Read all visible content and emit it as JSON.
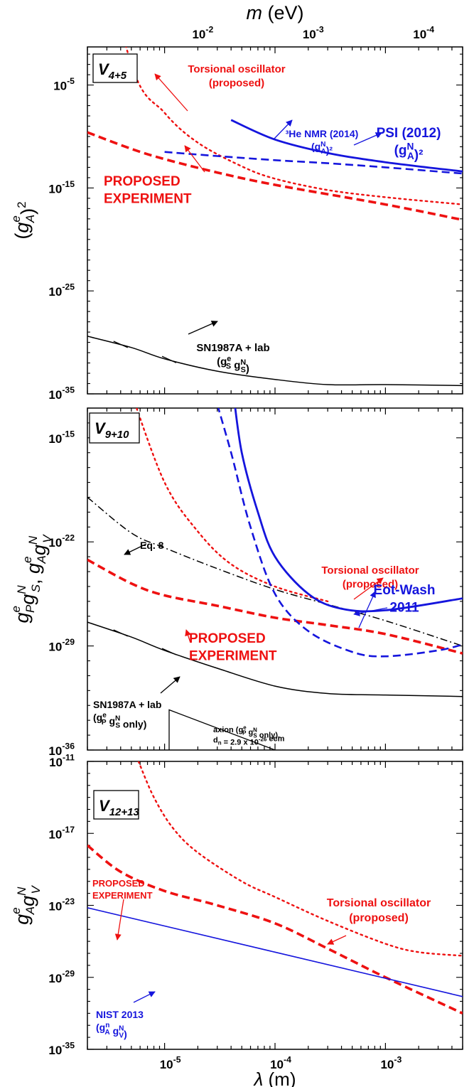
{
  "top_axis": {
    "label_var": "m",
    "label_unit": " (eV)",
    "ticks": [
      {
        "base": "10",
        "exp": "-2",
        "lambda": 1.97e-05
      },
      {
        "base": "10",
        "exp": "-3",
        "lambda": 0.000197
      },
      {
        "base": "10",
        "exp": "-4",
        "lambda": 0.00197
      }
    ]
  },
  "bottom_axis": {
    "label_var": "λ",
    "label_unit": " (m)",
    "ticks": [
      {
        "base": "10",
        "exp": "-5",
        "value": 1e-05
      },
      {
        "base": "10",
        "exp": "-4",
        "value": 0.0001
      },
      {
        "base": "10",
        "exp": "-3",
        "value": 0.001
      }
    ]
  },
  "colors": {
    "red": "#ee1111",
    "blue": "#1515dd",
    "black": "#000000"
  },
  "chart_data": [
    {
      "type": "line",
      "xscale": "log",
      "yscale": "log",
      "xlim": [
        2e-06,
        0.005
      ],
      "ylim_exp": [
        -35,
        -1.3
      ],
      "badge": {
        "main": "V",
        "sub": "4+5"
      },
      "ylabel": {
        "pre": "(g",
        "sub": "A",
        "sup": "e",
        "post": ")",
        "sup2": "2"
      },
      "yticks": [
        {
          "base": "10",
          "exp": "-5",
          "value_exp": -5
        },
        {
          "base": "10",
          "exp": "-15",
          "value_exp": -15
        },
        {
          "base": "10",
          "exp": "-25",
          "value_exp": -25
        },
        {
          "base": "10",
          "exp": "-35",
          "value_exp": -35
        }
      ],
      "series": [
        {
          "id": "torsional",
          "color": "red",
          "style": "dotted",
          "width": 2.4,
          "points": [
            [
              2e-06,
              15
            ],
            [
              5e-06,
              -3
            ],
            [
              1e-05,
              -7.7
            ],
            [
              2e-05,
              -10.6
            ],
            [
              5e-05,
              -12.9
            ],
            [
              0.0001,
              -14.1
            ],
            [
              0.0003,
              -15.2
            ],
            [
              0.001,
              -15.9
            ],
            [
              0.005,
              -16.6
            ]
          ]
        },
        {
          "id": "proposed",
          "color": "red",
          "style": "dashed",
          "width": 3.6,
          "points": [
            [
              2e-06,
              -9.6
            ],
            [
              5e-06,
              -11.2
            ],
            [
              1e-05,
              -12.2
            ],
            [
              3e-05,
              -13.5
            ],
            [
              0.0001,
              -14.7
            ],
            [
              0.001,
              -16.6
            ],
            [
              0.005,
              -18.1
            ]
          ]
        },
        {
          "id": "he3",
          "color": "blue",
          "style": "dashed",
          "width": 2.6,
          "points": [
            [
              1e-05,
              -11.5
            ],
            [
              3e-05,
              -11.9
            ],
            [
              0.0001,
              -12.3
            ],
            [
              0.0003,
              -12.6
            ],
            [
              0.001,
              -13.0
            ],
            [
              0.005,
              -13.6
            ]
          ]
        },
        {
          "id": "psi",
          "color": "blue",
          "style": "solid",
          "width": 2.8,
          "points": [
            [
              4e-05,
              -8.4
            ],
            [
              0.0001,
              -10.3
            ],
            [
              0.0003,
              -11.6
            ],
            [
              0.001,
              -12.5
            ],
            [
              0.005,
              -13.4
            ]
          ]
        },
        {
          "id": "sn",
          "color": "black",
          "style": "solid",
          "width": 1.5,
          "points": [
            [
              2e-06,
              -29.4
            ],
            [
              5e-06,
              -30.5
            ],
            [
              1e-05,
              -31.6
            ],
            [
              3e-05,
              -32.8
            ],
            [
              0.0001,
              -33.6
            ],
            [
              0.0003,
              -34.1
            ],
            [
              0.001,
              -34.1
            ],
            [
              0.005,
              -34.2
            ]
          ]
        }
      ],
      "labels": [
        {
          "id": "torsional-label",
          "color": "red",
          "lines": [
            "Torsional oscillator",
            "(proposed)"
          ],
          "size": 15
        },
        {
          "id": "he3-label",
          "color": "blue",
          "lines": [
            "³He NMR (2014)",
            "(g_A^N)²"
          ],
          "size": 14
        },
        {
          "id": "psi-label",
          "color": "blue",
          "lines": [
            "PSI (2012)",
            "(g_A^N)²"
          ],
          "size": 19
        },
        {
          "id": "proposed-label",
          "color": "red",
          "lines": [
            "PROPOSED",
            "EXPERIMENT"
          ],
          "size": 19
        },
        {
          "id": "sn-label",
          "color": "black",
          "lines": [
            "SN1987A + lab",
            "(g_S^e g_S^N)"
          ],
          "size": 15
        }
      ]
    },
    {
      "type": "line",
      "xscale": "log",
      "yscale": "log",
      "xlim": [
        2e-06,
        0.005
      ],
      "ylim_exp": [
        -36,
        -13
      ],
      "badge": {
        "main": "V",
        "sub": "9+10"
      },
      "ylabel": {
        "parts": [
          [
            "g",
            "P",
            "e"
          ],
          [
            "g",
            "S",
            "N"
          ]
        ],
        "sep": ", ",
        "parts2": [
          [
            "g",
            "A",
            "e"
          ],
          [
            "g",
            "V",
            "N"
          ]
        ]
      },
      "yticks": [
        {
          "base": "10",
          "exp": "-15",
          "value_exp": -15
        },
        {
          "base": "10",
          "exp": "-22",
          "value_exp": -22
        },
        {
          "base": "10",
          "exp": "-29",
          "value_exp": -29
        },
        {
          "base": "10",
          "exp": "-36",
          "value_exp": -36
        }
      ],
      "series": [
        {
          "id": "torsional",
          "color": "red",
          "style": "dotted",
          "width": 2.4,
          "points": [
            [
              5e-06,
              -12
            ],
            [
              1e-05,
              -18
            ],
            [
              2e-05,
              -21.3
            ],
            [
              4e-05,
              -23.5
            ],
            [
              0.0001,
              -25
            ],
            [
              0.0003,
              -26
            ]
          ]
        },
        {
          "id": "eq8",
          "color": "black",
          "style": "dashdot",
          "width": 1.5,
          "points": [
            [
              2e-06,
              -19
            ],
            [
              5e-06,
              -21.4
            ],
            [
              1e-05,
              -22.4
            ],
            [
              3e-05,
              -23.8
            ],
            [
              0.0001,
              -25.2
            ],
            [
              0.0003,
              -26.2
            ],
            [
              0.001,
              -27.3
            ],
            [
              0.005,
              -29
            ]
          ]
        },
        {
          "id": "proposed",
          "color": "red",
          "style": "dashed",
          "width": 3.6,
          "points": [
            [
              2e-06,
              -23.2
            ],
            [
              5e-06,
              -24.8
            ],
            [
              1e-05,
              -25.6
            ],
            [
              3e-05,
              -26.3
            ],
            [
              0.0001,
              -27.1
            ],
            [
              0.0003,
              -27.6
            ],
            [
              0.001,
              -28.2
            ],
            [
              0.005,
              -29.5
            ]
          ]
        },
        {
          "id": "eotwash-dashed",
          "color": "blue",
          "style": "dashed",
          "width": 2.6,
          "points": [
            [
              2.8e-05,
              -12
            ],
            [
              4e-05,
              -16
            ],
            [
              6e-05,
              -21
            ],
            [
              0.0001,
              -25.5
            ],
            [
              0.0002,
              -28
            ],
            [
              0.0005,
              -29.4
            ],
            [
              0.001,
              -29.7
            ],
            [
              0.003,
              -29.3
            ],
            [
              0.005,
              -28.9
            ]
          ]
        },
        {
          "id": "eotwash",
          "color": "blue",
          "style": "solid",
          "width": 2.8,
          "points": [
            [
              4.2e-05,
              -12
            ],
            [
              5e-05,
              -16
            ],
            [
              7e-05,
              -20
            ],
            [
              0.0001,
              -23
            ],
            [
              0.0002,
              -25.5
            ],
            [
              0.0004,
              -26.5
            ],
            [
              0.001,
              -26.6
            ],
            [
              0.005,
              -25.8
            ]
          ]
        },
        {
          "id": "sn",
          "color": "black",
          "style": "solid",
          "width": 1.5,
          "points": [
            [
              2e-06,
              -27.4
            ],
            [
              5e-06,
              -28.4
            ],
            [
              1e-05,
              -29.3
            ],
            [
              3e-05,
              -30.5
            ],
            [
              0.0001,
              -31.7
            ],
            [
              0.0003,
              -32.2
            ],
            [
              0.001,
              -32.3
            ],
            [
              0.005,
              -32.4
            ]
          ]
        },
        {
          "id": "axion",
          "color": "black",
          "style": "solid",
          "width": 1.3,
          "points": [
            [
              1.1e-05,
              -36
            ],
            [
              1.1e-05,
              -33.3
            ],
            [
              0.0001,
              -36
            ]
          ]
        }
      ],
      "labels": [
        {
          "id": "torsional-label",
          "color": "red",
          "lines": [
            "Torsional oscillator",
            "(proposed)"
          ],
          "size": 15
        },
        {
          "id": "eq8-label",
          "color": "black",
          "lines": [
            "Eq. 8"
          ],
          "size": 14
        },
        {
          "id": "eotwash-label",
          "color": "blue",
          "lines": [
            "Eot-Wash",
            "2011"
          ],
          "size": 19
        },
        {
          "id": "proposed-label",
          "color": "red",
          "lines": [
            "PROPOSED",
            "EXPERIMENT"
          ],
          "size": 19
        },
        {
          "id": "sn-label",
          "color": "black",
          "lines": [
            "SN1987A + lab",
            "(g_P^e g_S^N only)"
          ],
          "size": 14
        },
        {
          "id": "axion-label",
          "color": "black",
          "lines": [
            "axion (g_P^e g_S^N only),",
            "d_n = 2.9 x 10^-26 ecm"
          ],
          "size": 11
        }
      ]
    },
    {
      "type": "line",
      "xscale": "log",
      "yscale": "log",
      "xlim": [
        2e-06,
        0.005
      ],
      "ylim_exp": [
        -35,
        -11
      ],
      "badge": {
        "main": "V",
        "sub": "12+13"
      },
      "ylabel": {
        "parts": [
          [
            "g",
            "A",
            "e"
          ],
          [
            "g",
            "V",
            "N"
          ]
        ]
      },
      "yticks": [
        {
          "base": "10",
          "exp": "-11",
          "value_exp": -11
        },
        {
          "base": "10",
          "exp": "-17",
          "value_exp": -17
        },
        {
          "base": "10",
          "exp": "-23",
          "value_exp": -23
        },
        {
          "base": "10",
          "exp": "-29",
          "value_exp": -29
        },
        {
          "base": "10",
          "exp": "-35",
          "value_exp": -35
        }
      ],
      "series": [
        {
          "id": "torsional",
          "color": "red",
          "style": "dotted",
          "width": 2.4,
          "points": [
            [
              5.8e-06,
              -11
            ],
            [
              8e-06,
              -14
            ],
            [
              1.2e-05,
              -16.6
            ],
            [
              2e-05,
              -18.6
            ],
            [
              5e-05,
              -21
            ],
            [
              0.0001,
              -22.3
            ],
            [
              0.0003,
              -24.3
            ],
            [
              0.001,
              -26.2
            ],
            [
              0.002,
              -26.9
            ],
            [
              0.005,
              -27.2
            ]
          ]
        },
        {
          "id": "proposed",
          "color": "red",
          "style": "dashed",
          "width": 3.6,
          "points": [
            [
              2e-06,
              -18
            ],
            [
              4e-06,
              -20.2
            ],
            [
              1e-05,
              -21.8
            ],
            [
              3e-05,
              -23
            ],
            [
              0.0001,
              -24.5
            ],
            [
              0.0003,
              -26.6
            ],
            [
              0.001,
              -29
            ],
            [
              0.005,
              -32
            ]
          ]
        },
        {
          "id": "nist",
          "color": "blue",
          "style": "solid",
          "width": 1.6,
          "points": [
            [
              2e-06,
              -23.2
            ],
            [
              0.005,
              -30.6
            ]
          ]
        }
      ],
      "labels": [
        {
          "id": "proposed-label",
          "color": "red",
          "lines": [
            "PROPOSED",
            "EXPERIMENT"
          ],
          "size": 13
        },
        {
          "id": "torsional-label",
          "color": "red",
          "lines": [
            "Torsional oscillator",
            "(proposed)"
          ],
          "size": 16
        },
        {
          "id": "nist-label",
          "color": "blue",
          "lines": [
            "NIST 2013",
            "(g_A^n g_V^N)"
          ],
          "size": 14
        }
      ]
    }
  ]
}
